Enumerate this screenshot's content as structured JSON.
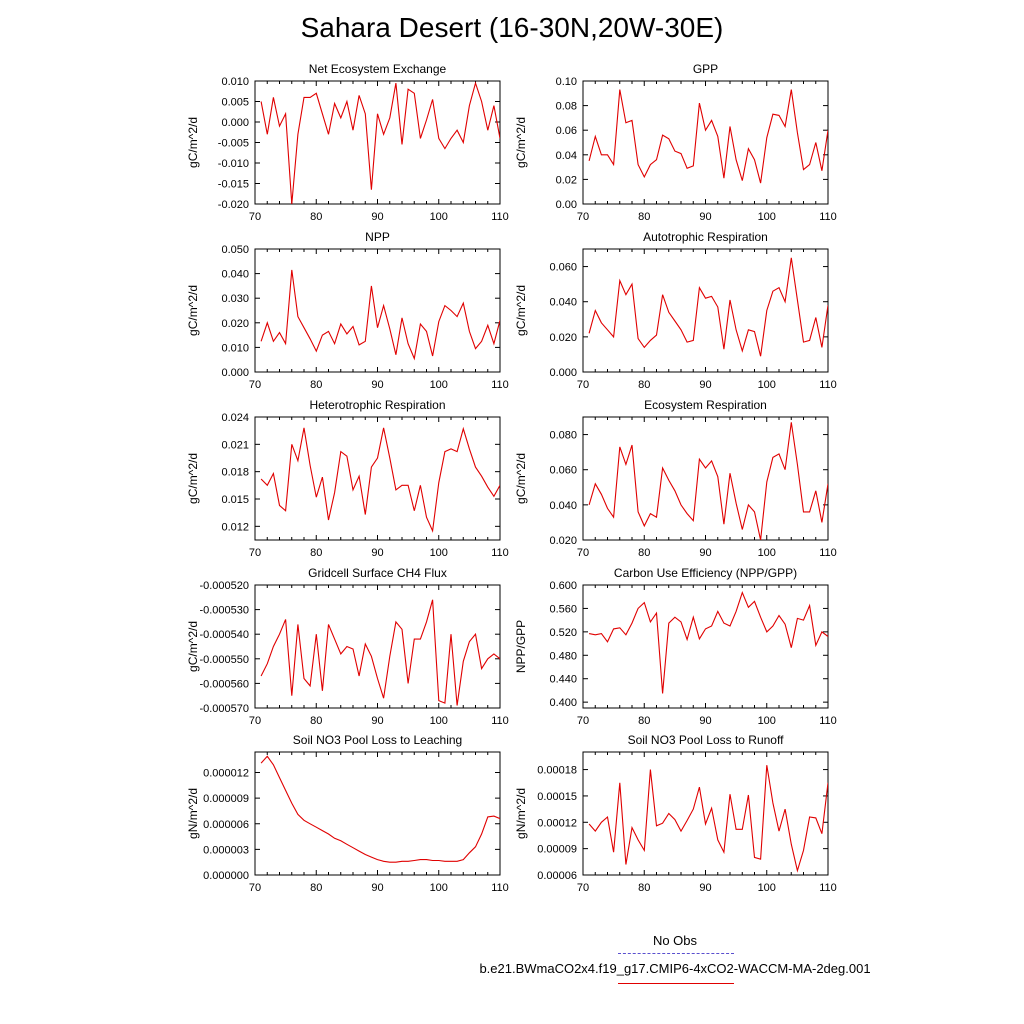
{
  "title": "Sahara Desert (16-30N,20W-30E)",
  "legend": {
    "obs_label": "No Obs",
    "obs_color": "#5a4fcf",
    "run_label": "b.e21.BWmaCO2x4.f19_g17.CMIP6-4xCO2-WACCM-MA-2deg.001",
    "run_color": "#e00000"
  },
  "chart_data": [
    {
      "type": "line",
      "title": "Net Ecosystem Exchange",
      "ylabel": "gC/m^2/d",
      "xlim": [
        70,
        110
      ],
      "ylim": [
        -0.02,
        0.01
      ],
      "xticks": [
        70,
        80,
        90,
        100,
        110
      ],
      "yticks": [
        -0.02,
        -0.015,
        -0.01,
        -0.005,
        0.0,
        0.005,
        0.01
      ],
      "ytick_labels": [
        "-0.020",
        "-0.015",
        "-0.010",
        "-0.005",
        "0.000",
        "0.005",
        "0.010"
      ],
      "color": "#e00000",
      "x": [
        71,
        72,
        73,
        74,
        75,
        76,
        77,
        78,
        79,
        80,
        81,
        82,
        83,
        84,
        85,
        86,
        87,
        88,
        89,
        90,
        91,
        92,
        93,
        94,
        95,
        96,
        97,
        98,
        99,
        100,
        101,
        102,
        103,
        104,
        105,
        106,
        107,
        108,
        109,
        110
      ],
      "y": [
        0.005,
        -0.003,
        0.006,
        -0.001,
        0.002,
        -0.02,
        -0.003,
        0.006,
        0.006,
        0.007,
        0.002,
        -0.003,
        0.0045,
        0.001,
        0.005,
        -0.002,
        0.0065,
        0.002,
        -0.0165,
        0.002,
        -0.003,
        0.001,
        0.0095,
        -0.0055,
        0.008,
        0.007,
        -0.004,
        0.0005,
        0.0055,
        -0.004,
        -0.0065,
        -0.004,
        -0.002,
        -0.005,
        0.004,
        0.0095,
        0.005,
        -0.002,
        0.004,
        -0.004
      ]
    },
    {
      "type": "line",
      "title": "GPP",
      "ylabel": "gC/m^2/d",
      "xlim": [
        70,
        110
      ],
      "ylim": [
        0.0,
        0.1
      ],
      "xticks": [
        70,
        80,
        90,
        100,
        110
      ],
      "yticks": [
        0.0,
        0.02,
        0.04,
        0.06,
        0.08,
        0.1
      ],
      "ytick_labels": [
        "0.00",
        "0.02",
        "0.04",
        "0.06",
        "0.08",
        "0.10"
      ],
      "color": "#e00000",
      "x": [
        71,
        72,
        73,
        74,
        75,
        76,
        77,
        78,
        79,
        80,
        81,
        82,
        83,
        84,
        85,
        86,
        87,
        88,
        89,
        90,
        91,
        92,
        93,
        94,
        95,
        96,
        97,
        98,
        99,
        100,
        101,
        102,
        103,
        104,
        105,
        106,
        107,
        108,
        109,
        110
      ],
      "y": [
        0.035,
        0.055,
        0.04,
        0.04,
        0.032,
        0.093,
        0.066,
        0.068,
        0.032,
        0.022,
        0.032,
        0.036,
        0.056,
        0.053,
        0.043,
        0.041,
        0.029,
        0.031,
        0.082,
        0.06,
        0.068,
        0.055,
        0.021,
        0.063,
        0.036,
        0.019,
        0.045,
        0.036,
        0.017,
        0.054,
        0.073,
        0.072,
        0.063,
        0.093,
        0.058,
        0.028,
        0.032,
        0.05,
        0.027,
        0.06
      ]
    },
    {
      "type": "line",
      "title": "NPP",
      "ylabel": "gC/m^2/d",
      "xlim": [
        70,
        110
      ],
      "ylim": [
        0.0,
        0.05
      ],
      "xticks": [
        70,
        80,
        90,
        100,
        110
      ],
      "yticks": [
        0.0,
        0.01,
        0.02,
        0.03,
        0.04,
        0.05
      ],
      "ytick_labels": [
        "0.000",
        "0.010",
        "0.020",
        "0.030",
        "0.040",
        "0.050"
      ],
      "color": "#e00000",
      "x": [
        71,
        72,
        73,
        74,
        75,
        76,
        77,
        78,
        79,
        80,
        81,
        82,
        83,
        84,
        85,
        86,
        87,
        88,
        89,
        90,
        91,
        92,
        93,
        94,
        95,
        96,
        97,
        98,
        99,
        100,
        101,
        102,
        103,
        104,
        105,
        106,
        107,
        108,
        109,
        110
      ],
      "y": [
        0.0125,
        0.02,
        0.0125,
        0.016,
        0.0115,
        0.0415,
        0.0225,
        0.018,
        0.0135,
        0.0085,
        0.015,
        0.0165,
        0.0115,
        0.0195,
        0.0155,
        0.0185,
        0.011,
        0.0125,
        0.035,
        0.018,
        0.027,
        0.0175,
        0.007,
        0.022,
        0.0115,
        0.0055,
        0.0195,
        0.0165,
        0.0065,
        0.0205,
        0.027,
        0.025,
        0.0225,
        0.028,
        0.0165,
        0.0095,
        0.0125,
        0.019,
        0.0115,
        0.021
      ]
    },
    {
      "type": "line",
      "title": "Autotrophic Respiration",
      "ylabel": "gC/m^2/d",
      "xlim": [
        70,
        110
      ],
      "ylim": [
        0.0,
        0.07
      ],
      "xticks": [
        70,
        80,
        90,
        100,
        110
      ],
      "yticks": [
        0.0,
        0.02,
        0.04,
        0.06
      ],
      "ytick_labels": [
        "0.000",
        "0.020",
        "0.040",
        "0.060"
      ],
      "color": "#e00000",
      "x": [
        71,
        72,
        73,
        74,
        75,
        76,
        77,
        78,
        79,
        80,
        81,
        82,
        83,
        84,
        85,
        86,
        87,
        88,
        89,
        90,
        91,
        92,
        93,
        94,
        95,
        96,
        97,
        98,
        99,
        100,
        101,
        102,
        103,
        104,
        105,
        106,
        107,
        108,
        109,
        110
      ],
      "y": [
        0.022,
        0.035,
        0.028,
        0.024,
        0.02,
        0.052,
        0.044,
        0.05,
        0.019,
        0.014,
        0.018,
        0.021,
        0.044,
        0.034,
        0.029,
        0.024,
        0.017,
        0.018,
        0.048,
        0.042,
        0.043,
        0.037,
        0.013,
        0.041,
        0.024,
        0.012,
        0.024,
        0.023,
        0.009,
        0.035,
        0.046,
        0.048,
        0.04,
        0.065,
        0.041,
        0.017,
        0.018,
        0.031,
        0.014,
        0.038
      ]
    },
    {
      "type": "line",
      "title": "Heterotrophic Respiration",
      "ylabel": "gC/m^2/d",
      "xlim": [
        70,
        110
      ],
      "ylim": [
        0.0105,
        0.024
      ],
      "xticks": [
        70,
        80,
        90,
        100,
        110
      ],
      "yticks": [
        0.012,
        0.015,
        0.018,
        0.021,
        0.024
      ],
      "ytick_labels": [
        "0.012",
        "0.015",
        "0.018",
        "0.021",
        "0.024"
      ],
      "color": "#e00000",
      "x": [
        71,
        72,
        73,
        74,
        75,
        76,
        77,
        78,
        79,
        80,
        81,
        82,
        83,
        84,
        85,
        86,
        87,
        88,
        89,
        90,
        91,
        92,
        93,
        94,
        95,
        96,
        97,
        98,
        99,
        100,
        101,
        102,
        103,
        104,
        105,
        106,
        107,
        108,
        109,
        110
      ],
      "y": [
        0.0172,
        0.0165,
        0.0178,
        0.0143,
        0.0137,
        0.021,
        0.0192,
        0.0228,
        0.0187,
        0.0152,
        0.0174,
        0.0127,
        0.0157,
        0.0202,
        0.0197,
        0.016,
        0.0175,
        0.0133,
        0.0185,
        0.0195,
        0.0228,
        0.0195,
        0.016,
        0.0165,
        0.0165,
        0.0137,
        0.0165,
        0.013,
        0.0115,
        0.0168,
        0.0202,
        0.0205,
        0.0202,
        0.0227,
        0.0205,
        0.0185,
        0.0175,
        0.0163,
        0.0153,
        0.0165
      ]
    },
    {
      "type": "line",
      "title": "Ecosystem Respiration",
      "ylabel": "gC/m^2/d",
      "xlim": [
        70,
        110
      ],
      "ylim": [
        0.02,
        0.09
      ],
      "xticks": [
        70,
        80,
        90,
        100,
        110
      ],
      "yticks": [
        0.02,
        0.04,
        0.06,
        0.08
      ],
      "ytick_labels": [
        "0.020",
        "0.040",
        "0.060",
        "0.080"
      ],
      "color": "#e00000",
      "x": [
        71,
        72,
        73,
        74,
        75,
        76,
        77,
        78,
        79,
        80,
        81,
        82,
        83,
        84,
        85,
        86,
        87,
        88,
        89,
        90,
        91,
        92,
        93,
        94,
        95,
        96,
        97,
        98,
        99,
        100,
        101,
        102,
        103,
        104,
        105,
        106,
        107,
        108,
        109,
        110
      ],
      "y": [
        0.04,
        0.052,
        0.046,
        0.038,
        0.033,
        0.073,
        0.063,
        0.074,
        0.036,
        0.028,
        0.035,
        0.033,
        0.061,
        0.054,
        0.048,
        0.04,
        0.035,
        0.031,
        0.066,
        0.061,
        0.065,
        0.056,
        0.029,
        0.058,
        0.041,
        0.026,
        0.04,
        0.036,
        0.02,
        0.053,
        0.067,
        0.069,
        0.06,
        0.087,
        0.063,
        0.036,
        0.036,
        0.048,
        0.03,
        0.052
      ]
    },
    {
      "type": "line",
      "title": "Gridcell Surface CH4 Flux",
      "ylabel": "gC/m^2/d",
      "xlim": [
        70,
        110
      ],
      "ylim": [
        -0.00057,
        -0.00052
      ],
      "xticks": [
        70,
        80,
        90,
        100,
        110
      ],
      "yticks": [
        -0.00057,
        -0.00056,
        -0.00055,
        -0.00054,
        -0.00053,
        -0.00052
      ],
      "ytick_labels": [
        "-0.000570",
        "-0.000560",
        "-0.000550",
        "-0.000540",
        "-0.000530",
        "-0.000520"
      ],
      "color": "#e00000",
      "x": [
        71,
        72,
        73,
        74,
        75,
        76,
        77,
        78,
        79,
        80,
        81,
        82,
        83,
        84,
        85,
        86,
        87,
        88,
        89,
        90,
        91,
        92,
        93,
        94,
        95,
        96,
        97,
        98,
        99,
        100,
        101,
        102,
        103,
        104,
        105,
        106,
        107,
        108,
        109,
        110
      ],
      "y": [
        -0.000557,
        -0.000552,
        -0.000545,
        -0.00054,
        -0.000534,
        -0.000565,
        -0.000536,
        -0.000558,
        -0.000561,
        -0.00054,
        -0.000563,
        -0.000536,
        -0.000542,
        -0.000548,
        -0.000545,
        -0.000546,
        -0.000557,
        -0.000544,
        -0.000549,
        -0.000558,
        -0.000566,
        -0.000549,
        -0.000535,
        -0.000538,
        -0.00056,
        -0.000542,
        -0.000542,
        -0.000535,
        -0.000526,
        -0.000567,
        -0.000568,
        -0.00054,
        -0.000569,
        -0.000551,
        -0.000543,
        -0.00054,
        -0.000554,
        -0.00055,
        -0.000548,
        -0.00055
      ]
    },
    {
      "type": "line",
      "title": "Carbon Use Efficiency (NPP/GPP)",
      "ylabel": "NPP/GPP",
      "xlim": [
        70,
        110
      ],
      "ylim": [
        0.39,
        0.6
      ],
      "xticks": [
        70,
        80,
        90,
        100,
        110
      ],
      "yticks": [
        0.4,
        0.44,
        0.48,
        0.52,
        0.56,
        0.6
      ],
      "ytick_labels": [
        "0.400",
        "0.440",
        "0.480",
        "0.520",
        "0.560",
        "0.600"
      ],
      "color": "#e00000",
      "x": [
        71,
        72,
        73,
        74,
        75,
        76,
        77,
        78,
        79,
        80,
        81,
        82,
        83,
        84,
        85,
        86,
        87,
        88,
        89,
        90,
        91,
        92,
        93,
        94,
        95,
        96,
        97,
        98,
        99,
        100,
        101,
        102,
        103,
        104,
        105,
        106,
        107,
        108,
        109,
        110
      ],
      "y": [
        0.517,
        0.515,
        0.517,
        0.503,
        0.525,
        0.527,
        0.515,
        0.535,
        0.56,
        0.57,
        0.537,
        0.552,
        0.415,
        0.535,
        0.545,
        0.537,
        0.507,
        0.545,
        0.508,
        0.525,
        0.53,
        0.555,
        0.535,
        0.53,
        0.555,
        0.587,
        0.562,
        0.572,
        0.545,
        0.52,
        0.53,
        0.548,
        0.533,
        0.493,
        0.543,
        0.54,
        0.565,
        0.497,
        0.52,
        0.512
      ]
    },
    {
      "type": "line",
      "title": "Soil NO3 Pool Loss to Leaching",
      "ylabel": "gN/m^2/d",
      "xlim": [
        70,
        110
      ],
      "ylim": [
        0.0,
        1.44e-05
      ],
      "xticks": [
        70,
        80,
        90,
        100,
        110
      ],
      "yticks": [
        0.0,
        3e-06,
        6e-06,
        9e-06,
        1.2e-05
      ],
      "ytick_labels": [
        "0.000000",
        "0.000003",
        "0.000006",
        "0.000009",
        "0.000012"
      ],
      "color": "#e00000",
      "x": [
        71,
        72,
        73,
        74,
        75,
        76,
        77,
        78,
        79,
        80,
        81,
        82,
        83,
        84,
        85,
        86,
        87,
        88,
        89,
        90,
        91,
        92,
        93,
        94,
        95,
        96,
        97,
        98,
        99,
        100,
        101,
        102,
        103,
        104,
        105,
        106,
        107,
        108,
        109,
        110
      ],
      "y": [
        1.31e-05,
        1.39e-05,
        1.29e-05,
        1.14e-05,
        9.9e-06,
        8.4e-06,
        7.1e-06,
        6.4e-06,
        6e-06,
        5.6e-06,
        5.2e-06,
        4.8e-06,
        4.3e-06,
        4e-06,
        3.6e-06,
        3.2e-06,
        2.8e-06,
        2.4e-06,
        2.1e-06,
        1.8e-06,
        1.6e-06,
        1.5e-06,
        1.5e-06,
        1.6e-06,
        1.6e-06,
        1.7e-06,
        1.8e-06,
        1.8e-06,
        1.7e-06,
        1.7e-06,
        1.6e-06,
        1.6e-06,
        1.6e-06,
        1.8e-06,
        2.6e-06,
        3.3e-06,
        4.8e-06,
        6.8e-06,
        6.9e-06,
        6.6e-06
      ]
    },
    {
      "type": "line",
      "title": "Soil NO3 Pool Loss to Runoff",
      "ylabel": "gN/m^2/d",
      "xlim": [
        70,
        110
      ],
      "ylim": [
        6e-05,
        0.0002
      ],
      "xticks": [
        70,
        80,
        90,
        100,
        110
      ],
      "yticks": [
        6e-05,
        9e-05,
        0.00012,
        0.00015,
        0.00018
      ],
      "ytick_labels": [
        "0.00006",
        "0.00009",
        "0.00012",
        "0.00015",
        "0.00018"
      ],
      "color": "#e00000",
      "x": [
        71,
        72,
        73,
        74,
        75,
        76,
        77,
        78,
        79,
        80,
        81,
        82,
        83,
        84,
        85,
        86,
        87,
        88,
        89,
        90,
        91,
        92,
        93,
        94,
        95,
        96,
        97,
        98,
        99,
        100,
        101,
        102,
        103,
        104,
        105,
        106,
        107,
        108,
        109,
        110
      ],
      "y": [
        0.000118,
        0.00011,
        0.00012,
        0.000126,
        8.6e-05,
        0.000165,
        7.2e-05,
        0.000114,
        0.0001,
        8.8e-05,
        0.00018,
        0.000116,
        0.000119,
        0.00013,
        0.000123,
        0.00011,
        0.000122,
        0.000135,
        0.00016,
        0.000118,
        0.000136,
        0.0001,
        8.6e-05,
        0.000152,
        0.000112,
        0.000112,
        0.000151,
        8e-05,
        7.8e-05,
        0.000185,
        0.000142,
        0.00011,
        0.000135,
        9.5e-05,
        6.5e-05,
        8.8e-05,
        0.000126,
        0.000125,
        0.000107,
        0.000165
      ]
    }
  ]
}
